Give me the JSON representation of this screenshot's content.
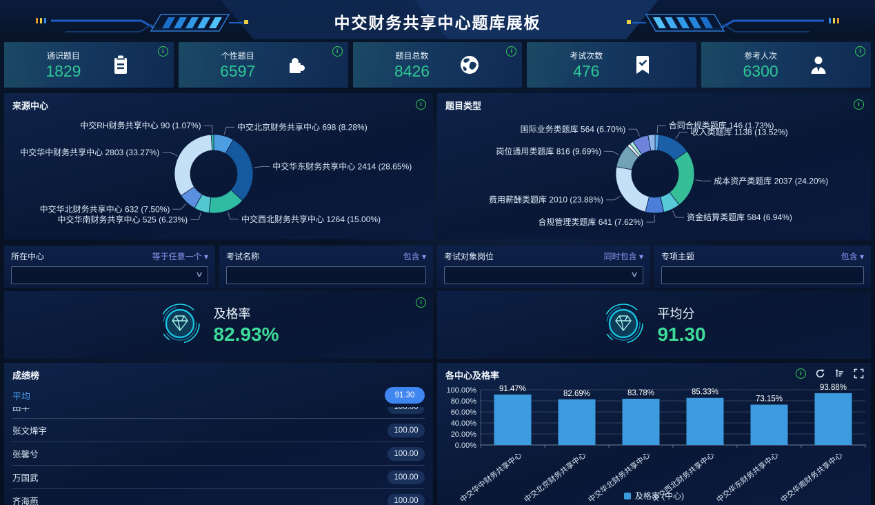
{
  "header": {
    "title": "中交财务共享中心题库展板"
  },
  "stats": [
    {
      "label": "通识题目",
      "value": "1829"
    },
    {
      "label": "个性题目",
      "value": "6597"
    },
    {
      "label": "题目总数",
      "value": "8426"
    },
    {
      "label": "考试次数",
      "value": "476"
    },
    {
      "label": "参考人次",
      "value": "6300"
    }
  ],
  "filters": [
    {
      "label": "所在中心",
      "operator": "等于任意一个 ▾",
      "type": "select"
    },
    {
      "label": "考试名称",
      "operator": "包含 ▾",
      "type": "text"
    },
    {
      "label": "考试对象岗位",
      "operator": "同时包含 ▾",
      "type": "select"
    },
    {
      "label": "专项主题",
      "operator": "包含 ▾",
      "type": "text"
    }
  ],
  "gauges": [
    {
      "title": "及格率",
      "value": "82.93%"
    },
    {
      "title": "平均分",
      "value": "91.30"
    }
  ],
  "scoreboard": {
    "title": "成绩榜",
    "average": {
      "label": "平均",
      "value": "91.30"
    },
    "rows": [
      {
        "name": "田丰",
        "score": "100.00"
      },
      {
        "name": "张文烯宇",
        "score": "100.00"
      },
      {
        "name": "张馨兮",
        "score": "100.00"
      },
      {
        "name": "万国武",
        "score": "100.00"
      },
      {
        "name": "齐海燕",
        "score": "100.00"
      }
    ]
  },
  "chart_data": [
    {
      "type": "pie",
      "title": "来源中心",
      "donut": true,
      "legend_position": "none",
      "slices": [
        {
          "name": "中交北京财务共享中心",
          "value": 698,
          "pct": "8.28%",
          "color": "#4D9EE2"
        },
        {
          "name": "中交华东财务共享中心",
          "value": 2414,
          "pct": "28.65%",
          "color": "#155A9F"
        },
        {
          "name": "中交西北财务共享中心",
          "value": 1264,
          "pct": "15.00%",
          "color": "#2FBCA2"
        },
        {
          "name": "中交华南财务共享中心",
          "value": 525,
          "pct": "6.23%",
          "color": "#54C8D0"
        },
        {
          "name": "中交华北财务共享中心",
          "value": 632,
          "pct": "7.50%",
          "color": "#5B8FE0"
        },
        {
          "name": "中交华中财务共享中心",
          "value": 2803,
          "pct": "33.27%",
          "color": "#C3E0F6"
        },
        {
          "name": "中交RH财务共享中心",
          "value": 90,
          "pct": "1.07%",
          "color": "#38C2AC"
        }
      ]
    },
    {
      "type": "pie",
      "title": "题目类型",
      "donut": true,
      "legend_position": "none",
      "slices": [
        {
          "name": "合同合规类题库",
          "value": 146,
          "pct": "1.73%",
          "color": "#5AAAE8"
        },
        {
          "name": "收入类题库",
          "value": 1138,
          "pct": "13.52%",
          "color": "#1A5FA8"
        },
        {
          "name": "成本资产类题库",
          "value": 2037,
          "pct": "24.20%",
          "color": "#36BE96"
        },
        {
          "name": "资金结算类题库",
          "value": 584,
          "pct": "6.94%",
          "color": "#57C8D8"
        },
        {
          "name": "合规管理类题库",
          "value": 641,
          "pct": "7.62%",
          "color": "#4A7ED8"
        },
        {
          "name": "费用薪酬类题库",
          "value": 2010,
          "pct": "23.88%",
          "color": "#C3E0F6"
        },
        {
          "name": "岗位通用类题库",
          "value": 816,
          "pct": "9.69%",
          "color": "#6FA3B5"
        },
        {
          "name": "",
          "value": 110,
          "pct": "",
          "color": "#EAF5FD"
        },
        {
          "name": "",
          "value": 130,
          "pct": "",
          "color": "#A6E6D4"
        },
        {
          "name": "国际业务类题库",
          "value": 564,
          "pct": "6.70%",
          "color": "#6D83DC"
        },
        {
          "name": "",
          "value": 242,
          "pct": "",
          "color": "#8FB8E8"
        }
      ]
    },
    {
      "type": "bar",
      "title": "各中心及格率",
      "categories": [
        "中交华中财务共享中心",
        "中交北京财务共享中心",
        "中交华北财务共享中心",
        "中交西北财务共享中心",
        "中交华东财务共享中心",
        "中交华南财务共享中心"
      ],
      "values": [
        91.47,
        82.69,
        83.78,
        85.33,
        73.15,
        93.88
      ],
      "value_labels": [
        "91.47%",
        "82.69%",
        "83.78%",
        "85.33%",
        "73.15%",
        "93.88%"
      ],
      "yticks": [
        "100.00%",
        "80.00%",
        "60.00%",
        "40.00%",
        "20.00%",
        "0.00%"
      ],
      "ylim": [
        0,
        100
      ],
      "grid": true,
      "legend": "及格率 (中心)",
      "legend_position": "bottom",
      "bar_color": "#3D9BE0"
    }
  ]
}
